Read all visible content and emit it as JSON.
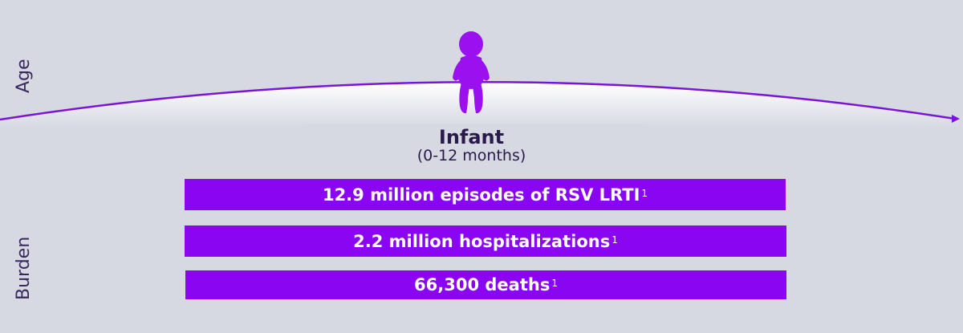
{
  "axes": {
    "age_label": "Age",
    "burden_label": "Burden"
  },
  "stage_card": {
    "title": "Infant",
    "subtitle": "(0-12 months)",
    "icon": "baby-icon"
  },
  "burden_bars": [
    {
      "text": "12.9 million episodes of RSV LRTI",
      "footnote": "1"
    },
    {
      "text": "2.2 million hospitalizations",
      "footnote": "1"
    },
    {
      "text": "66,300 deaths",
      "footnote": "1"
    }
  ],
  "colors": {
    "background": "#d6d8e2",
    "accent": "#8a06f2",
    "arc_line": "#7a14d8",
    "text_dark": "#2a1a4a"
  }
}
